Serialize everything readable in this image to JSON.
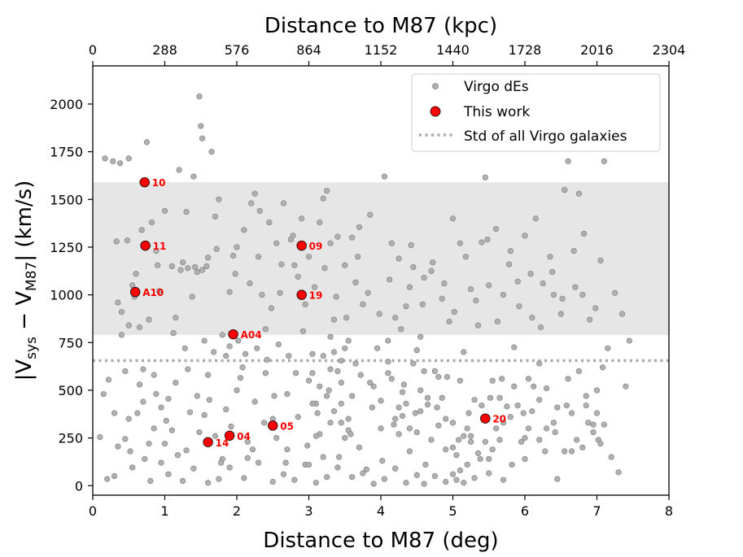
{
  "chart_data": {
    "type": "scatter",
    "xlabel": "Distance to M87 (deg)",
    "ylabel_base": "|V",
    "ylabel_sub1": "sys",
    "ylabel_mid": " − V",
    "ylabel_sub2": "M87",
    "ylabel_end": "| (km/s)",
    "top_xlabel": "Distance to M87 (kpc)",
    "xlim": [
      0,
      8
    ],
    "ylim": [
      -50,
      2200
    ],
    "x_ticks": [
      0,
      1,
      2,
      3,
      4,
      5,
      6,
      7,
      8
    ],
    "x_tick_labels": [
      "0",
      "1",
      "2",
      "3",
      "4",
      "5",
      "6",
      "7",
      "8"
    ],
    "y_ticks": [
      0,
      250,
      500,
      750,
      1000,
      1250,
      1500,
      1750,
      2000
    ],
    "y_tick_labels": [
      "0",
      "250",
      "500",
      "750",
      "1000",
      "1250",
      "1500",
      "1750",
      "2000"
    ],
    "top_x_ticks": [
      0,
      1,
      2,
      3,
      4,
      5,
      6,
      7,
      8
    ],
    "top_x_tick_labels": [
      "0",
      "288",
      "576",
      "864",
      "1152",
      "1440",
      "1728",
      "2016",
      "2304"
    ],
    "shaded_band": [
      790,
      1590
    ],
    "std_line": 655,
    "legend": {
      "position": "top-right",
      "entries": [
        "Virgo dEs",
        "This work",
        "Std of all Virgo galaxies"
      ]
    },
    "colors": {
      "virgo": "#b0b0b0",
      "virgo_edge": "#7a7a7a",
      "this_work": "#ff0000",
      "band": "#e6e6e6",
      "std_line": "#aaaaaa"
    },
    "this_work": [
      {
        "label": "10",
        "x": 0.72,
        "y": 1590
      },
      {
        "label": "11",
        "x": 0.73,
        "y": 1258
      },
      {
        "label": "A10",
        "x": 0.59,
        "y": 1015
      },
      {
        "label": "09",
        "x": 2.9,
        "y": 1258
      },
      {
        "label": "19",
        "x": 2.9,
        "y": 1000
      },
      {
        "label": "A04",
        "x": 1.95,
        "y": 793
      },
      {
        "label": "04",
        "x": 1.9,
        "y": 262
      },
      {
        "label": "14",
        "x": 1.6,
        "y": 228
      },
      {
        "label": "05",
        "x": 2.5,
        "y": 315
      },
      {
        "label": "20",
        "x": 5.45,
        "y": 352
      }
    ],
    "virgo_des": [
      [
        0.1,
        255
      ],
      [
        0.17,
        1715
      ],
      [
        0.22,
        555
      ],
      [
        0.28,
        1700
      ],
      [
        0.3,
        380
      ],
      [
        0.33,
        1280
      ],
      [
        0.35,
        960
      ],
      [
        0.38,
        1690
      ],
      [
        0.4,
        910
      ],
      [
        0.45,
        245
      ],
      [
        0.48,
        1285
      ],
      [
        0.5,
        1715
      ],
      [
        0.52,
        180
      ],
      [
        0.55,
        1050
      ],
      [
        0.6,
        1110
      ],
      [
        0.65,
        530
      ],
      [
        0.7,
        610
      ],
      [
        0.75,
        1800
      ],
      [
        0.78,
        220
      ],
      [
        0.82,
        1380
      ],
      [
        0.85,
        580
      ],
      [
        0.9,
        1155
      ],
      [
        0.95,
        120
      ],
      [
        1.0,
        1440
      ],
      [
        1.05,
        455
      ],
      [
        1.1,
        290
      ],
      [
        1.15,
        880
      ],
      [
        1.2,
        1655
      ],
      [
        1.25,
        1170
      ],
      [
        1.28,
        720
      ],
      [
        1.3,
        1435
      ],
      [
        1.35,
        385
      ],
      [
        1.4,
        1620
      ],
      [
        1.45,
        1120
      ],
      [
        1.48,
        2040
      ],
      [
        1.5,
        1885
      ],
      [
        1.52,
        1820
      ],
      [
        1.55,
        370
      ],
      [
        1.6,
        1195
      ],
      [
        1.65,
        1750
      ],
      [
        1.7,
        1410
      ],
      [
        1.75,
        1500
      ],
      [
        1.8,
        140
      ],
      [
        1.85,
        680
      ],
      [
        1.9,
        1015
      ],
      [
        1.95,
        1205
      ],
      [
        2.0,
        1250
      ],
      [
        2.05,
        565
      ],
      [
        2.1,
        1340
      ],
      [
        2.15,
        145
      ],
      [
        2.2,
        1480
      ],
      [
        2.25,
        1530
      ],
      [
        2.3,
        1200
      ],
      [
        2.35,
        1000
      ],
      [
        2.4,
        820
      ],
      [
        2.45,
        1380
      ],
      [
        2.5,
        350
      ],
      [
        2.55,
        1270
      ],
      [
        2.6,
        1010
      ],
      [
        2.65,
        1480
      ],
      [
        2.7,
        190
      ],
      [
        2.75,
        1290
      ],
      [
        2.8,
        1155
      ],
      [
        2.85,
        1095
      ],
      [
        2.9,
        1400
      ],
      [
        2.95,
        950
      ],
      [
        3.0,
        1200
      ],
      [
        3.05,
        690
      ],
      [
        3.1,
        430
      ],
      [
        3.15,
        1380
      ],
      [
        3.2,
        1505
      ],
      [
        3.25,
        1545
      ],
      [
        3.3,
        1270
      ],
      [
        3.35,
        870
      ],
      [
        3.4,
        1305
      ],
      [
        3.45,
        655
      ],
      [
        3.5,
        1155
      ],
      [
        3.55,
        290
      ],
      [
        3.6,
        1300
      ],
      [
        3.65,
        1065
      ],
      [
        3.7,
        1355
      ],
      [
        3.75,
        950
      ],
      [
        3.8,
        85
      ],
      [
        3.85,
        1420
      ],
      [
        3.9,
        520
      ],
      [
        3.95,
        720
      ],
      [
        4.0,
        445
      ],
      [
        4.05,
        1620
      ],
      [
        4.1,
        760
      ],
      [
        4.15,
        1270
      ],
      [
        4.2,
        880
      ],
      [
        4.25,
        1190
      ],
      [
        4.3,
        365
      ],
      [
        4.35,
        940
      ],
      [
        4.4,
        1040
      ],
      [
        4.45,
        1145
      ],
      [
        4.5,
        280
      ],
      [
        4.55,
        780
      ],
      [
        4.6,
        1090
      ],
      [
        4.65,
        425
      ],
      [
        4.7,
        1125
      ],
      [
        4.75,
        600
      ],
      [
        4.8,
        315
      ],
      [
        4.85,
        980
      ],
      [
        4.9,
        190
      ],
      [
        4.95,
        860
      ],
      [
        5.0,
        1400
      ],
      [
        5.05,
        30
      ],
      [
        5.1,
        1270
      ],
      [
        5.15,
        700
      ],
      [
        5.2,
        110
      ],
      [
        5.25,
        1030
      ],
      [
        5.3,
        450
      ],
      [
        5.35,
        840
      ],
      [
        5.4,
        1275
      ],
      [
        5.45,
        1615
      ],
      [
        5.5,
        1050
      ],
      [
        5.55,
        550
      ],
      [
        5.6,
        1345
      ],
      [
        5.65,
        240
      ],
      [
        5.7,
        1000
      ],
      [
        5.75,
        415
      ],
      [
        5.8,
        1230
      ],
      [
        5.85,
        725
      ],
      [
        5.9,
        1070
      ],
      [
        5.95,
        230
      ],
      [
        6.0,
        1310
      ],
      [
        6.05,
        560
      ],
      [
        6.1,
        880
      ],
      [
        6.15,
        1400
      ],
      [
        6.2,
        640
      ],
      [
        6.25,
        1060
      ],
      [
        6.3,
        300
      ],
      [
        6.35,
        1200
      ],
      [
        6.4,
        1000
      ],
      [
        6.45,
        35
      ],
      [
        6.5,
        900
      ],
      [
        6.55,
        1550
      ],
      [
        6.6,
        1700
      ],
      [
        6.65,
        180
      ],
      [
        6.7,
        1040
      ],
      [
        6.75,
        1530
      ],
      [
        6.8,
        1000
      ],
      [
        6.85,
        420
      ],
      [
        6.9,
        870
      ],
      [
        6.95,
        280
      ],
      [
        7.0,
        500
      ],
      [
        7.05,
        1180
      ],
      [
        7.1,
        1700
      ],
      [
        7.15,
        720
      ],
      [
        7.2,
        150
      ],
      [
        7.25,
        1010
      ],
      [
        7.3,
        70
      ],
      [
        7.35,
        900
      ],
      [
        7.4,
        520
      ],
      [
        7.45,
        760
      ],
      [
        0.2,
        35
      ],
      [
        0.3,
        50
      ],
      [
        0.55,
        95
      ],
      [
        0.8,
        25
      ],
      [
        0.95,
        410
      ],
      [
        1.05,
        60
      ],
      [
        1.25,
        25
      ],
      [
        1.4,
        90
      ],
      [
        1.6,
        15
      ],
      [
        1.75,
        35
      ],
      [
        1.9,
        95
      ],
      [
        2.1,
        40
      ],
      [
        2.3,
        120
      ],
      [
        2.5,
        20
      ],
      [
        2.65,
        60
      ],
      [
        2.8,
        30
      ],
      [
        2.95,
        110
      ],
      [
        3.1,
        15
      ],
      [
        3.25,
        45
      ],
      [
        3.4,
        95
      ],
      [
        3.6,
        45
      ],
      [
        3.75,
        65
      ],
      [
        3.9,
        10
      ],
      [
        4.05,
        35
      ],
      [
        4.2,
        90
      ],
      [
        4.35,
        15
      ],
      [
        4.5,
        55
      ],
      [
        4.6,
        10
      ],
      [
        4.75,
        50
      ],
      [
        4.9,
        20
      ],
      [
        5.0,
        60
      ],
      [
        5.15,
        15
      ],
      [
        5.3,
        40
      ],
      [
        5.5,
        65
      ],
      [
        5.7,
        30
      ],
      [
        0.5,
        350
      ],
      [
        0.7,
        440
      ],
      [
        0.85,
        300
      ],
      [
        1.0,
        220
      ],
      [
        1.15,
        540
      ],
      [
        1.3,
        185
      ],
      [
        1.45,
        470
      ],
      [
        1.6,
        580
      ],
      [
        1.7,
        260
      ],
      [
        1.85,
        400
      ],
      [
        2.0,
        500
      ],
      [
        2.15,
        230
      ],
      [
        2.25,
        440
      ],
      [
        2.4,
        590
      ],
      [
        2.55,
        250
      ],
      [
        2.7,
        480
      ],
      [
        2.85,
        360
      ],
      [
        3.0,
        550
      ],
      [
        3.15,
        270
      ],
      [
        3.3,
        610
      ],
      [
        3.45,
        330
      ],
      [
        3.6,
        470
      ],
      [
        3.7,
        200
      ],
      [
        3.85,
        540
      ],
      [
        4.0,
        300
      ],
      [
        4.1,
        590
      ],
      [
        4.25,
        410
      ],
      [
        4.4,
        180
      ],
      [
        4.55,
        500
      ],
      [
        4.7,
        240
      ],
      [
        4.85,
        460
      ],
      [
        5.0,
        330
      ],
      [
        5.1,
        550
      ],
      [
        5.25,
        260
      ],
      [
        5.4,
        420
      ],
      [
        5.55,
        190
      ],
      [
        5.7,
        330
      ],
      [
        5.85,
        520
      ],
      [
        6.0,
        250
      ],
      [
        6.2,
        450
      ],
      [
        6.4,
        330
      ],
      [
        6.6,
        560
      ],
      [
        6.8,
        200
      ],
      [
        7.0,
        380
      ],
      [
        0.15,
        480
      ],
      [
        0.35,
        205
      ],
      [
        0.45,
        600
      ],
      [
        0.62,
        380
      ],
      [
        0.72,
        140
      ],
      [
        0.88,
        480
      ],
      [
        1.02,
        340
      ],
      [
        1.18,
        160
      ],
      [
        1.32,
        610
      ],
      [
        1.48,
        280
      ],
      [
        1.62,
        450
      ],
      [
        1.78,
        120
      ],
      [
        1.92,
        310
      ],
      [
        2.08,
        620
      ],
      [
        2.22,
        190
      ],
      [
        2.38,
        330
      ],
      [
        2.52,
        470
      ],
      [
        2.68,
        120
      ],
      [
        2.82,
        590
      ],
      [
        2.98,
        210
      ],
      [
        3.12,
        380
      ],
      [
        3.28,
        500
      ],
      [
        3.42,
        150
      ],
      [
        3.58,
        270
      ],
      [
        3.72,
        580
      ],
      [
        3.88,
        410
      ],
      [
        4.02,
        130
      ],
      [
        4.18,
        320
      ],
      [
        4.32,
        530
      ],
      [
        4.48,
        380
      ],
      [
        4.62,
        110
      ],
      [
        4.78,
        410
      ],
      [
        4.92,
        570
      ],
      [
        5.08,
        240
      ],
      [
        5.22,
        380
      ],
      [
        5.38,
        140
      ],
      [
        5.52,
        460
      ],
      [
        5.68,
        560
      ],
      [
        5.82,
        110
      ],
      [
        5.98,
        380
      ],
      [
        6.12,
        520
      ],
      [
        6.28,
        180
      ],
      [
        6.42,
        280
      ],
      [
        6.58,
        420
      ],
      [
        6.72,
        240
      ],
      [
        6.88,
        330
      ],
      [
        7.02,
        240
      ],
      [
        7.08,
        620
      ],
      [
        0.58,
        990
      ],
      [
        0.68,
        1340
      ],
      [
        0.88,
        1230
      ],
      [
        1.12,
        800
      ],
      [
        1.38,
        990
      ],
      [
        1.58,
        1150
      ],
      [
        1.72,
        1240
      ],
      [
        1.98,
        1110
      ],
      [
        2.18,
        1060
      ],
      [
        2.32,
        1440
      ],
      [
        2.48,
        930
      ],
      [
        2.62,
        1160
      ],
      [
        2.78,
        1310
      ],
      [
        2.92,
        810
      ],
      [
        3.08,
        1040
      ],
      [
        3.22,
        1140
      ],
      [
        3.38,
        990
      ],
      [
        3.52,
        880
      ],
      [
        3.68,
        1200
      ],
      [
        3.82,
        1010
      ],
      [
        3.98,
        900
      ],
      [
        4.12,
        1080
      ],
      [
        4.28,
        820
      ],
      [
        4.42,
        1260
      ],
      [
        4.58,
        950
      ],
      [
        4.72,
        1170
      ],
      [
        4.88,
        1060
      ],
      [
        5.02,
        910
      ],
      [
        5.18,
        1200
      ],
      [
        5.32,
        970
      ],
      [
        5.48,
        1290
      ],
      [
        5.62,
        860
      ],
      [
        5.78,
        1160
      ],
      [
        5.92,
        940
      ],
      [
        6.08,
        1110
      ],
      [
        6.22,
        830
      ],
      [
        6.38,
        1120
      ],
      [
        6.52,
        980
      ],
      [
        6.68,
        1230
      ],
      [
        6.82,
        1320
      ],
      [
        6.98,
        930
      ],
      [
        3.35,
        700
      ],
      [
        3.5,
        720
      ],
      [
        3.2,
        680
      ],
      [
        3.05,
        590
      ],
      [
        3.45,
        540
      ],
      [
        3.55,
        760
      ],
      [
        3.65,
        640
      ],
      [
        3.3,
        780
      ],
      [
        3.4,
        600
      ],
      [
        3.15,
        520
      ],
      [
        3.25,
        470
      ],
      [
        3.05,
        430
      ],
      [
        3.35,
        390
      ],
      [
        3.5,
        250
      ],
      [
        3.45,
        430
      ],
      [
        3.2,
        150
      ],
      [
        3.0,
        110
      ],
      [
        3.1,
        260
      ],
      [
        3.3,
        330
      ],
      [
        3.55,
        350
      ],
      [
        4.1,
        650
      ],
      [
        4.15,
        560
      ],
      [
        4.3,
        490
      ],
      [
        4.35,
        430
      ],
      [
        4.45,
        640
      ],
      [
        4.5,
        710
      ],
      [
        4.55,
        390
      ],
      [
        4.2,
        350
      ],
      [
        4.25,
        270
      ],
      [
        4.4,
        300
      ],
      [
        4.6,
        600
      ],
      [
        4.65,
        460
      ],
      [
        4.8,
        570
      ],
      [
        4.9,
        350
      ],
      [
        5.0,
        200
      ],
      [
        5.05,
        160
      ],
      [
        5.1,
        80
      ],
      [
        5.15,
        260
      ],
      [
        5.2,
        300
      ],
      [
        5.25,
        230
      ],
      [
        5.35,
        170
      ],
      [
        5.45,
        230
      ],
      [
        5.5,
        140
      ],
      [
        5.6,
        300
      ],
      [
        5.65,
        460
      ],
      [
        5.8,
        360
      ],
      [
        5.9,
        420
      ],
      [
        6.0,
        140
      ],
      [
        6.05,
        300
      ],
      [
        6.1,
        390
      ],
      [
        6.2,
        240
      ],
      [
        6.3,
        510
      ],
      [
        6.45,
        410
      ],
      [
        6.55,
        180
      ],
      [
        6.65,
        380
      ],
      [
        6.75,
        600
      ],
      [
        6.85,
        470
      ],
      [
        6.95,
        320
      ],
      [
        7.05,
        220
      ],
      [
        7.1,
        320
      ],
      [
        0.4,
        790
      ],
      [
        0.5,
        840
      ],
      [
        0.65,
        830
      ],
      [
        0.78,
        870
      ],
      [
        0.92,
        1020
      ],
      [
        1.1,
        1150
      ],
      [
        1.22,
        1130
      ],
      [
        1.32,
        1140
      ],
      [
        1.42,
        1145
      ],
      [
        1.52,
        1130
      ],
      [
        1.55,
        760
      ],
      [
        1.68,
        700
      ],
      [
        1.8,
        790
      ],
      [
        1.9,
        730
      ],
      [
        2.02,
        760
      ],
      [
        2.12,
        690
      ],
      [
        2.28,
        720
      ],
      [
        2.42,
        660
      ],
      [
        2.58,
        740
      ],
      [
        2.72,
        680
      ]
    ]
  }
}
